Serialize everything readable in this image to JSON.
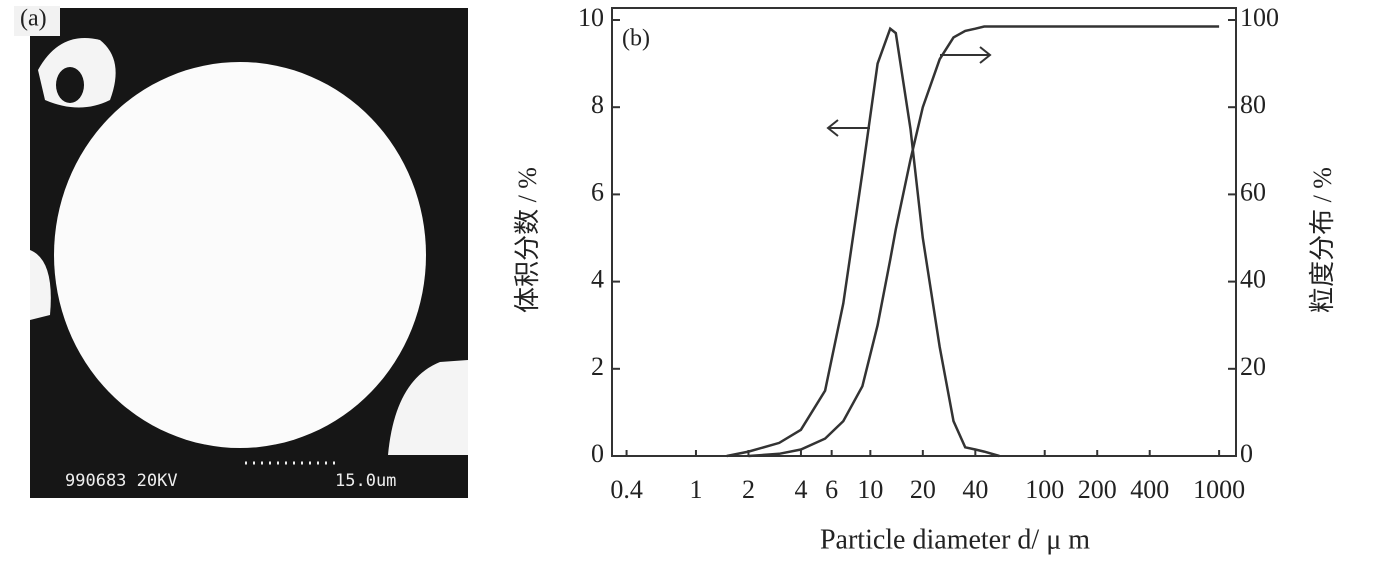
{
  "figure_a": {
    "label": "(a)",
    "caption_left": "990683 20KV",
    "caption_right": "15.0um"
  },
  "chart_data": {
    "type": "line",
    "label": "(b)",
    "x_label": "Particle diameter d/ μ m",
    "y_label": "体积分数 / %",
    "y2_label": "粒度分布 / %",
    "log_x": true,
    "x": [
      1.5,
      2,
      3,
      4,
      5.5,
      7,
      9,
      11,
      13,
      14,
      17,
      20,
      25,
      30,
      35,
      40,
      45,
      55,
      100,
      1000
    ],
    "series": [
      {
        "color": "#333333",
        "values": [
          0,
          0.1,
          0.3,
          0.6,
          1.5,
          3.5,
          6.5,
          9,
          9.8,
          9.7,
          7.5,
          5,
          2.5,
          0.8,
          0.2,
          0.15,
          0.1,
          0,
          null,
          null
        ]
      },
      {
        "color": "#333333",
        "axis": "y2",
        "values": [
          null,
          0,
          0.5,
          1.5,
          4,
          8,
          16,
          30,
          45,
          52,
          68,
          80,
          91,
          96,
          97.5,
          98,
          98.5,
          98.5,
          98.5,
          98.5
        ]
      }
    ],
    "xlim": [
      0.33,
      1250
    ],
    "xticks": [
      0.4,
      1,
      2,
      4,
      6,
      10,
      20,
      40,
      100,
      200,
      400,
      1000
    ],
    "ylim": [
      0,
      10
    ],
    "yticks": [
      0,
      2,
      4,
      6,
      8,
      10
    ],
    "y2lim": [
      0,
      100
    ],
    "y2ticks": [
      0,
      20,
      40,
      60,
      80,
      100
    ]
  }
}
